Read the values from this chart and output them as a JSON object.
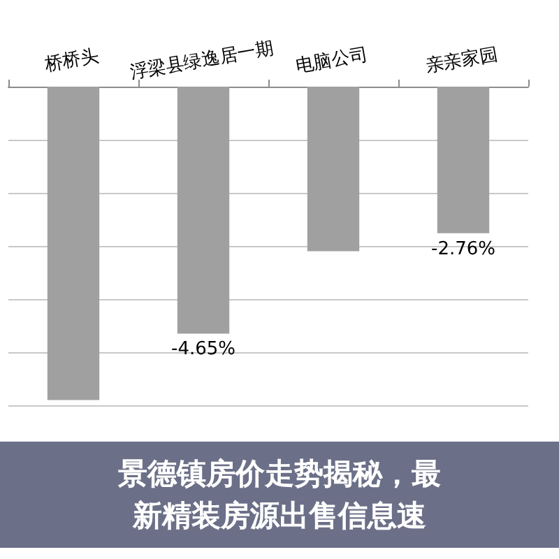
{
  "chart_data": {
    "type": "bar",
    "title": "景德镇房价走势揭秘，最新精装房源出售信息速",
    "categories": [
      "桥桥头",
      "浮梁县绿逸居一期",
      "电脑公司",
      "亲亲家园"
    ],
    "values": [
      -5.9,
      -4.65,
      -3.1,
      -2.76
    ],
    "color": "#a0a0a0",
    "value_labels": [
      null,
      "-4.65%",
      null,
      "-2.76%"
    ],
    "ylim": [
      -6,
      0
    ],
    "yticks": [
      {
        "value": 0,
        "label": null
      },
      {
        "value": -1,
        "label": null
      },
      {
        "value": -2,
        "label": null
      },
      {
        "value": -3,
        "label": null
      },
      {
        "value": -4,
        "label": null
      },
      {
        "value": -5,
        "label": null
      },
      {
        "value": -6,
        "label": null
      }
    ],
    "grid": "y",
    "tick_labels": "x"
  }
}
